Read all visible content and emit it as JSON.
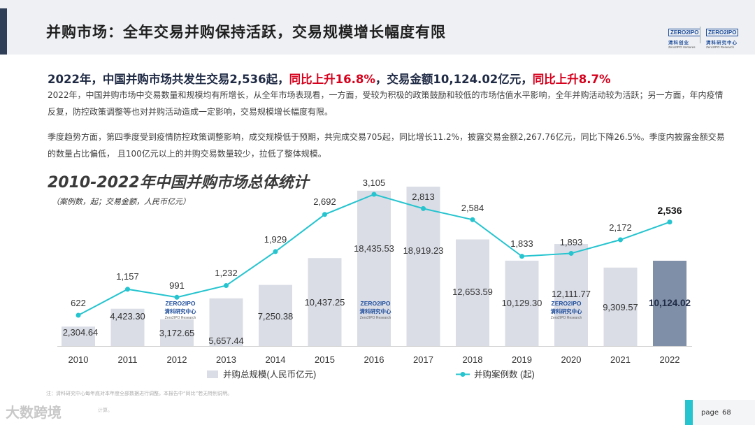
{
  "header": {
    "title": "并购市场：全年交易并购保持活跃，交易规模增长幅度有限",
    "logo1_top": "ZERO2IPO",
    "logo1_cn": "清科创业",
    "logo1_en": "Zero2IPO Ventures",
    "logo2_top": "ZERO2IPO",
    "logo2_cn": "清科研究中心",
    "logo2_en": "Zero2IPO Research"
  },
  "headline": {
    "part1": "2022年，中国并购市场共发生交易2,536起，",
    "part2": "同比上升16.8%",
    "part3": "，交易金额10,124.02亿元，",
    "part4": "同比上升8.7%"
  },
  "paragraphs": {
    "p1": "2022年，中国并购市场中交易数量和规模均有所增长，从全年市场表现看，一方面，受较为积极的政策鼓励和较低的市场估值水平影响，全年并购活动较为活跃；另一方面，年内疫情反复，防控政策调整等也对并购活动造成一定影响，交易规模增长幅度有限。",
    "p2": "季度趋势方面，第四季度受到疫情防控政策调整影响，成交规模低于预期，共完成交易705起，同比增长11.2%，披露交易金额2,267.76亿元，同比下降26.5%。季度内披露金额交易的数量占比偏低， 且100亿元以上的并购交易数量较少，拉低了整体规模。"
  },
  "chart_title": "2010-2022年中国并购市场总体统计",
  "chart_subtitle": "（案例数，起；交易金额，人民币亿元）",
  "chart_data": {
    "type": "bar",
    "title": "2010-2022年中国并购市场总体统计",
    "subtitle": "（案例数，起；交易金额，人民币亿元）",
    "categories": [
      "2010",
      "2011",
      "2012",
      "2013",
      "2014",
      "2015",
      "2016",
      "2017",
      "2018",
      "2019",
      "2020",
      "2021",
      "2022"
    ],
    "series": [
      {
        "name": "并购总规模(人民币亿元)",
        "type": "bar",
        "values": [
          2304.64,
          4423.3,
          3172.65,
          5657.44,
          7250.38,
          10437.25,
          18435.53,
          18919.23,
          12653.59,
          10129.3,
          12111.77,
          9309.57,
          10124.02
        ],
        "labels": [
          "2,304.64",
          "4,423.30",
          "3,172.65",
          "5,657.44",
          "7,250.38",
          "10,437.25",
          "18,435.53",
          "18,919.23",
          "12,653.59",
          "10,129.30",
          "12,111.77",
          "9,309.57",
          "10,124.02"
        ],
        "color": "#dadde6",
        "highlight_color": "#7f8fa8"
      },
      {
        "name": "并购案例数 (起)",
        "type": "line",
        "values": [
          622,
          1157,
          991,
          1232,
          1929,
          2692,
          3105,
          2813,
          2584,
          1833,
          1893,
          2172,
          2536
        ],
        "labels": [
          "622",
          "1,157",
          "991",
          "1,232",
          "1,929",
          "2,692",
          "3,105",
          "2,813",
          "2,584",
          "1,833",
          "1,893",
          "2,172",
          "2,536"
        ],
        "color": "#25c4cf"
      }
    ],
    "highlight_category": "2022",
    "legend_position": "bottom",
    "grid": false
  },
  "chart_logo": {
    "top": "ZERO2IPO",
    "cn": "清科研究中心",
    "en": "Zero2IPO Research"
  },
  "note": "注：清科研究中心每年底对本年度全部数据进行调整。本报告中“同比”若无特别说明。",
  "footnote2": "计算。",
  "watermark": "大数跨境",
  "page": {
    "label": "page",
    "number": "68"
  }
}
